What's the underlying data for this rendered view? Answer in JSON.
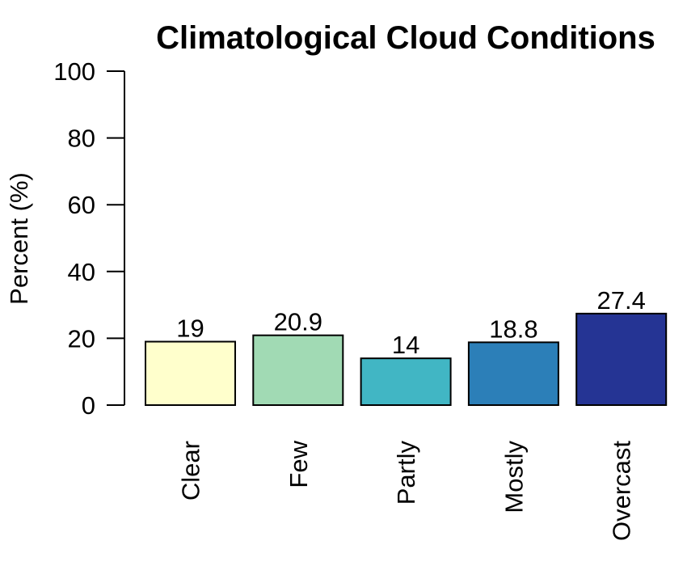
{
  "chart_data": {
    "type": "bar",
    "title": "Climatological Cloud Conditions",
    "ylabel": "Percent (%)",
    "xlabel": "",
    "categories": [
      "Clear",
      "Few",
      "Partly",
      "Mostly",
      "Overcast"
    ],
    "values": [
      19,
      20.9,
      14,
      18.8,
      27.4
    ],
    "value_labels": [
      "19",
      "20.9",
      "14",
      "18.8",
      "27.4"
    ],
    "colors": [
      "#FFFFCC",
      "#A1DAB4",
      "#41B6C4",
      "#2C7FB8",
      "#253494"
    ],
    "ylim": [
      0,
      100
    ],
    "yticks": [
      0,
      20,
      40,
      60,
      80,
      100
    ],
    "grid": false,
    "legend": "none"
  }
}
